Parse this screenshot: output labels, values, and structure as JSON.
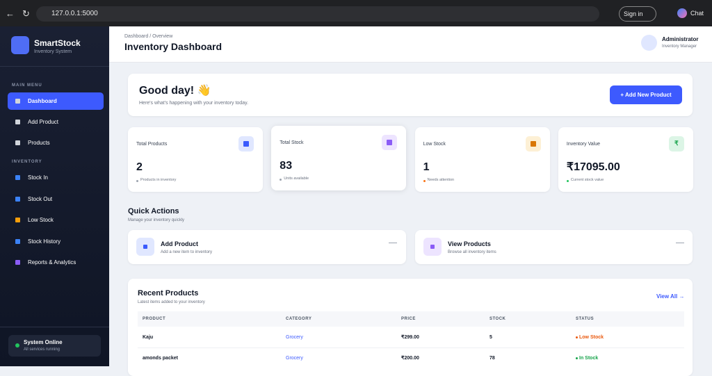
{
  "browser": {
    "url": "127.0.0.1:5000",
    "sign_in": "Sign in",
    "chat": "Chat"
  },
  "sidebar": {
    "brand": "SmartStock",
    "tagline": "Inventory System",
    "main_menu_label": "MAIN MENU",
    "main_menu": [
      "Dashboard",
      "Add Product",
      "Products"
    ],
    "inventory_label": "INVENTORY",
    "inventory": [
      "Stock In",
      "Stock Out",
      "Low Stock",
      "Stock History",
      "Reports & Analytics"
    ],
    "status_title": "System Online",
    "status_note": "All services running"
  },
  "header": {
    "breadcrumb": "Dashboard / Overview",
    "title": "Inventory Dashboard",
    "user_name": "Administrator",
    "user_role": "Inventory Manager"
  },
  "welcome": {
    "title": "Good day! 👋",
    "subtitle": "Here's what's happening with your inventory today.",
    "button": "+ Add New Product"
  },
  "stats": [
    {
      "label": "Total Products",
      "value": "2",
      "note": "Products in inventory"
    },
    {
      "label": "Total Stock",
      "value": "83",
      "note": "Units available"
    },
    {
      "label": "Low Stock",
      "value": "1",
      "note": "Needs attention"
    },
    {
      "label": "Inventory Value",
      "value": "₹17095.00",
      "note": "Current stock value",
      "icon": "₹"
    }
  ],
  "quick_actions": {
    "title": "Quick Actions",
    "subtitle": "Manage your inventory quickly",
    "items": [
      {
        "title": "Add Product",
        "subtitle": "Add a new item to inventory"
      },
      {
        "title": "View Products",
        "subtitle": "Browse all inventory items"
      }
    ]
  },
  "recent": {
    "title": "Recent Products",
    "subtitle": "Latest items added to your inventory",
    "view_all": "View All →",
    "columns": [
      "PRODUCT",
      "CATEGORY",
      "PRICE",
      "STOCK",
      "STATUS"
    ],
    "rows": [
      [
        "Kaju",
        "Grocery",
        "₹299.00",
        "5",
        "Low Stock"
      ],
      [
        "amonds packet",
        "Grocery",
        "₹200.00",
        "78",
        "In Stock"
      ]
    ]
  }
}
